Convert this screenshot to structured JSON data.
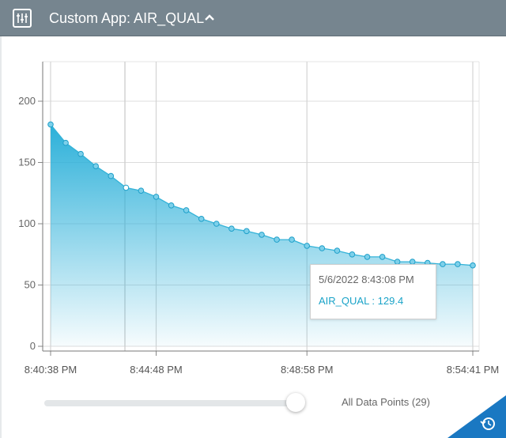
{
  "header": {
    "title": "Custom App: AIR_QUAL",
    "menu_icon": "sliders-icon",
    "chevron_icon": "chevron-up-icon"
  },
  "chart_data": {
    "type": "area",
    "title": "",
    "xlabel": "",
    "ylabel": "",
    "x_tick_labels": [
      "8:40:38 PM",
      "8:44:48 PM",
      "8:48:58 PM",
      "8:54:41 PM"
    ],
    "y_ticks": [
      0,
      50,
      100,
      150,
      200
    ],
    "ylim": [
      0,
      230
    ],
    "grid": true,
    "series": [
      {
        "name": "AIR_QUAL",
        "color": "#34b3d8",
        "values": [
          181,
          166,
          157,
          147,
          139,
          129.4,
          127,
          122,
          115,
          111,
          104,
          100,
          96,
          94,
          91,
          87,
          87,
          82,
          80,
          78,
          75,
          73,
          73,
          69,
          69,
          68,
          67,
          67,
          66
        ]
      }
    ]
  },
  "tooltip": {
    "date": "5/6/2022 8:43:08 PM",
    "value_text": "AIR_QUAL : 129.4"
  },
  "slider": {
    "label": "All Data Points (29)",
    "value": 1.0
  },
  "corner_icon": "history-icon"
}
